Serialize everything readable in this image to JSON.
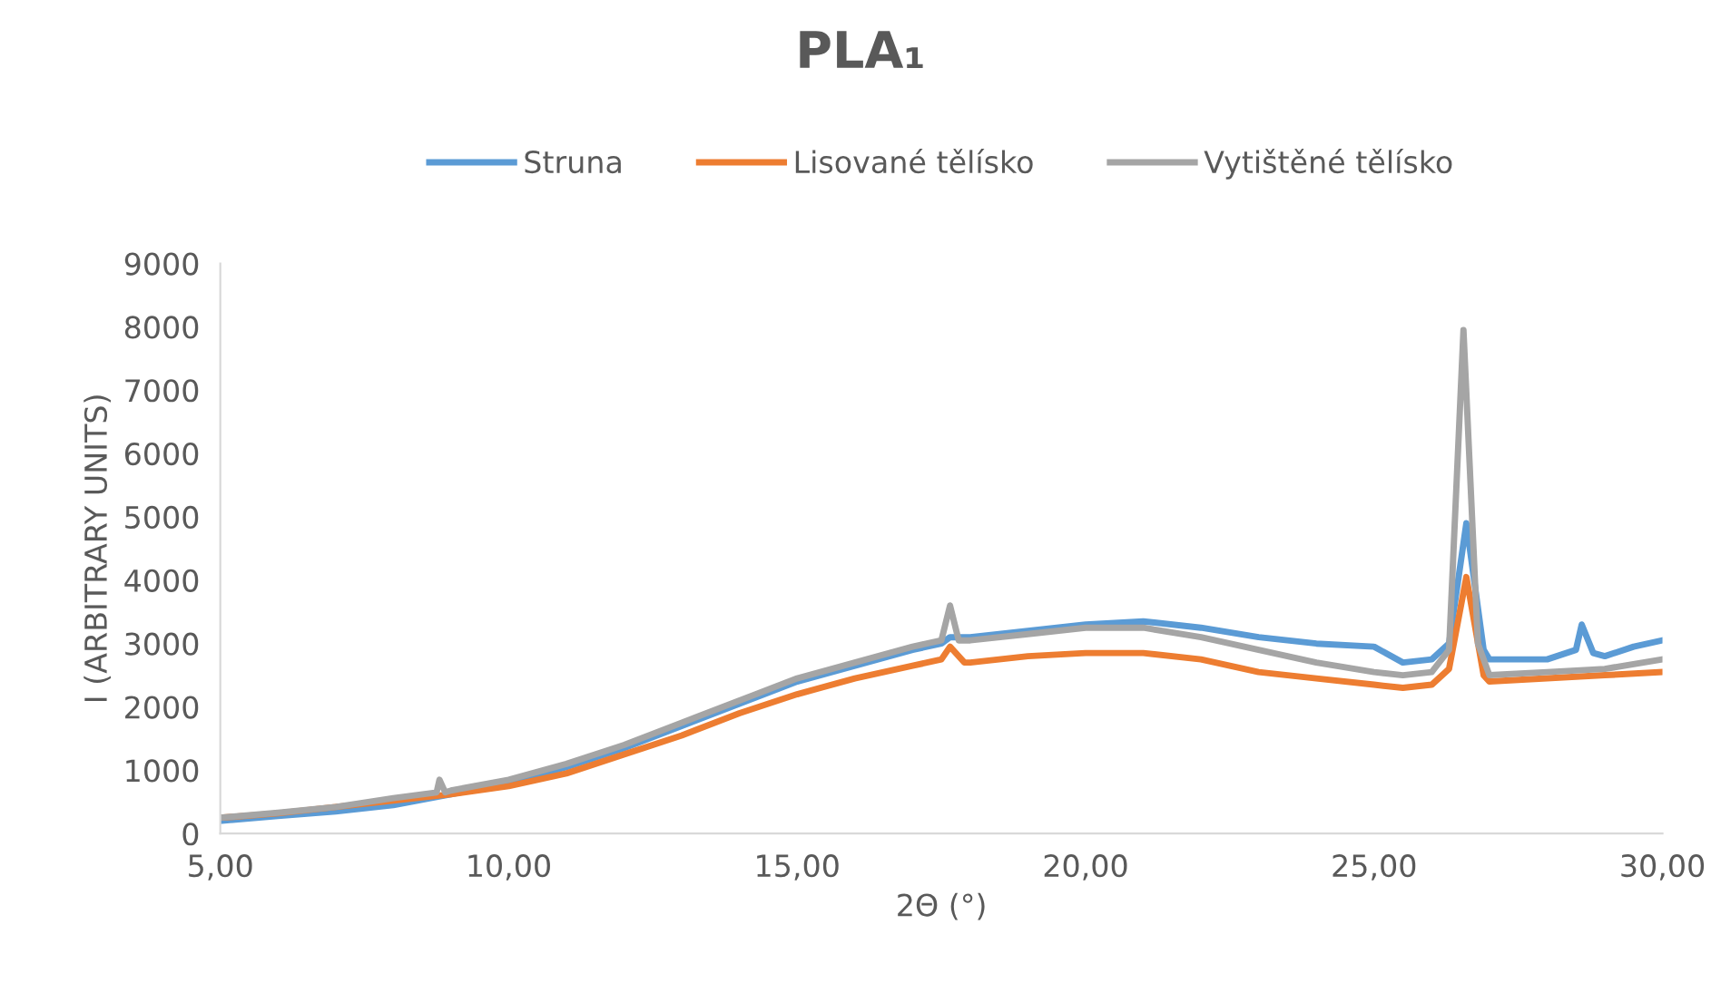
{
  "chart_data": {
    "type": "line",
    "title": "PLA₁",
    "xlabel": "2Θ (°)",
    "ylabel": "I (ARBITRARY UNITS)",
    "xlim": [
      5,
      30
    ],
    "xticks": [
      {
        "value": 5,
        "label": "5,00"
      },
      {
        "value": 10,
        "label": "10,00"
      },
      {
        "value": 15,
        "label": "15,00"
      },
      {
        "value": 20,
        "label": "20,00"
      },
      {
        "value": 25,
        "label": "25,00"
      },
      {
        "value": 30,
        "label": "30,00"
      }
    ],
    "ylim": [
      0,
      9000
    ],
    "yticks": [
      0,
      1000,
      2000,
      3000,
      4000,
      5000,
      6000,
      7000,
      8000,
      9000
    ],
    "grid": false,
    "legend": "top",
    "marker": "none",
    "line_style": "solid",
    "series": [
      {
        "name": "Struna",
        "color": "#5b9bd5",
        "x": [
          5,
          6,
          7,
          8,
          9,
          10,
          11,
          12,
          13,
          14,
          15,
          16,
          17,
          17.5,
          17.65,
          18,
          19,
          20,
          21,
          22,
          23,
          24,
          25,
          25.5,
          26,
          26.3,
          26.6,
          26.9,
          27,
          28,
          28.5,
          28.6,
          28.8,
          29,
          29.5,
          30
        ],
        "values": [
          200,
          280,
          350,
          450,
          620,
          800,
          1050,
          1350,
          1700,
          2050,
          2400,
          2650,
          2900,
          3000,
          3100,
          3100,
          3200,
          3300,
          3350,
          3250,
          3100,
          3000,
          2950,
          2700,
          2750,
          3000,
          4900,
          2900,
          2750,
          2750,
          2900,
          3300,
          2850,
          2800,
          2950,
          3050
        ]
      },
      {
        "name": "Lisované tělísko",
        "color": "#ed7d31",
        "x": [
          5,
          6,
          7,
          8,
          9,
          10,
          11,
          12,
          13,
          14,
          15,
          16,
          17,
          17.5,
          17.65,
          17.9,
          18,
          19,
          20,
          21,
          22,
          23,
          24,
          25,
          25.5,
          26,
          26.3,
          26.6,
          26.9,
          27,
          28,
          29,
          30
        ],
        "values": [
          250,
          320,
          420,
          520,
          620,
          750,
          950,
          1250,
          1550,
          1900,
          2200,
          2450,
          2650,
          2750,
          2950,
          2700,
          2700,
          2800,
          2850,
          2850,
          2750,
          2550,
          2450,
          2350,
          2300,
          2350,
          2600,
          4050,
          2500,
          2400,
          2450,
          2500,
          2550
        ]
      },
      {
        "name": "Vytištěné tělísko",
        "color": "#a5a5a5",
        "x": [
          5,
          6,
          7,
          8,
          8.75,
          8.8,
          8.9,
          9,
          10,
          11,
          12,
          13,
          14,
          15,
          16,
          17,
          17.5,
          17.65,
          17.8,
          18,
          19,
          20,
          21,
          22,
          23,
          24,
          25,
          25.5,
          26,
          26.3,
          26.55,
          26.8,
          27,
          28,
          29,
          30
        ],
        "values": [
          250,
          330,
          420,
          560,
          650,
          850,
          650,
          680,
          850,
          1100,
          1400,
          1750,
          2100,
          2450,
          2700,
          2950,
          3050,
          3600,
          3050,
          3050,
          3150,
          3250,
          3250,
          3100,
          2900,
          2700,
          2550,
          2500,
          2550,
          2900,
          7950,
          3000,
          2500,
          2550,
          2600,
          2750
        ]
      }
    ]
  }
}
